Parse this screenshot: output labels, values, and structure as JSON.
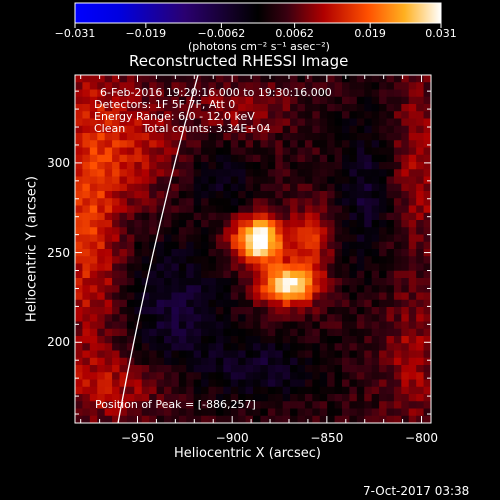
{
  "chart_data": {
    "type": "heatmap",
    "title": "Reconstructed RHESSI Image",
    "xlabel": "Heliocentric X (arcsec)",
    "ylabel": "Heliocentric Y (arcsec)",
    "xlim": [
      -983,
      -795
    ],
    "ylim": [
      155,
      349
    ],
    "x_ticks": [
      -950,
      -900,
      -850,
      -800
    ],
    "y_ticks": [
      200,
      250,
      300
    ],
    "colorbar": {
      "ticks": [
        "-0.031",
        "-0.019",
        "-0.0062",
        "0.0062",
        "0.019",
        "0.031"
      ],
      "range": [
        -0.031,
        0.031
      ],
      "units": "(photons cm⁻² s⁻¹ asec⁻²)"
    },
    "annotations": [
      "6-Feb-2016 19:20:16.000 to 19:30:16.000",
      "Detectors: 1F 5F 7F, Att 0",
      "Energy Range: 6.0 - 12.0 keV",
      "Clean     Total counts: 3.34E+04"
    ],
    "peak_label": "Position of Peak = [-886,257]",
    "peak": [
      -886,
      257
    ],
    "sources": [
      {
        "x": -886,
        "y": 257,
        "amp": 0.031,
        "sx": 9,
        "sy": 9
      },
      {
        "x": -870,
        "y": 232,
        "amp": 0.025,
        "sx": 11,
        "sy": 8
      },
      {
        "x": -858,
        "y": 258,
        "amp": 0.012,
        "sx": 7,
        "sy": 13
      },
      {
        "x": -975,
        "y": 275,
        "amp": 0.012,
        "sx": 12,
        "sy": 60
      },
      {
        "x": -950,
        "y": 310,
        "amp": 0.008,
        "sx": 15,
        "sy": 20
      },
      {
        "x": -895,
        "y": 330,
        "amp": 0.006,
        "sx": 18,
        "sy": 10
      },
      {
        "x": -800,
        "y": 300,
        "amp": 0.007,
        "sx": 12,
        "sy": 35
      },
      {
        "x": -805,
        "y": 190,
        "amp": 0.007,
        "sx": 10,
        "sy": 25
      },
      {
        "x": -960,
        "y": 175,
        "amp": 0.007,
        "sx": 20,
        "sy": 12
      },
      {
        "x": -885,
        "y": 185,
        "amp": -0.008,
        "sx": 20,
        "sy": 12
      },
      {
        "x": -930,
        "y": 220,
        "amp": -0.009,
        "sx": 18,
        "sy": 25
      },
      {
        "x": -830,
        "y": 285,
        "amp": -0.008,
        "sx": 10,
        "sy": 30
      },
      {
        "x": -905,
        "y": 290,
        "amp": -0.006,
        "sx": 12,
        "sy": 12
      }
    ]
  },
  "footer_timestamp": "7-Oct-2017 03:38"
}
